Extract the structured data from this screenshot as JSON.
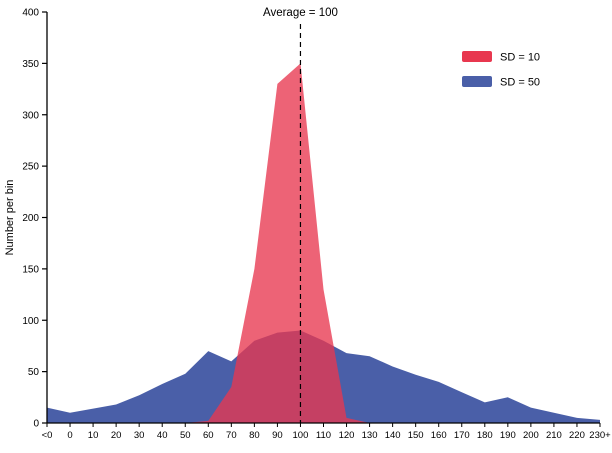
{
  "chart_data": {
    "type": "area",
    "title": "",
    "annotation": "Average = 100",
    "ylabel": "Number per bin",
    "xlabel": "",
    "ylim": [
      0,
      400
    ],
    "yticks": [
      0,
      50,
      100,
      150,
      200,
      250,
      300,
      350,
      400
    ],
    "categories": [
      "<0",
      "0",
      "10",
      "20",
      "30",
      "40",
      "50",
      "60",
      "70",
      "80",
      "90",
      "100",
      "110",
      "120",
      "130",
      "140",
      "150",
      "160",
      "170",
      "180",
      "190",
      "200",
      "210",
      "220",
      "230+"
    ],
    "average_line_category": "100",
    "average_line_style": "dashed",
    "grid": false,
    "legend_position": "top-right",
    "series": [
      {
        "name": "SD = 10",
        "color": "#E8374F",
        "fill_opacity": 0.78,
        "values": [
          0,
          0,
          0,
          0,
          0,
          0,
          0,
          2,
          35,
          150,
          330,
          350,
          130,
          5,
          0,
          0,
          0,
          0,
          0,
          0,
          0,
          0,
          0,
          0,
          0
        ]
      },
      {
        "name": "SD = 50",
        "color": "#4A5FA8",
        "fill_opacity": 1,
        "values": [
          15,
          10,
          14,
          18,
          27,
          38,
          48,
          70,
          60,
          80,
          88,
          90,
          80,
          68,
          65,
          55,
          47,
          40,
          30,
          20,
          25,
          15,
          10,
          5,
          3
        ]
      }
    ],
    "axis_color": "#000000"
  }
}
